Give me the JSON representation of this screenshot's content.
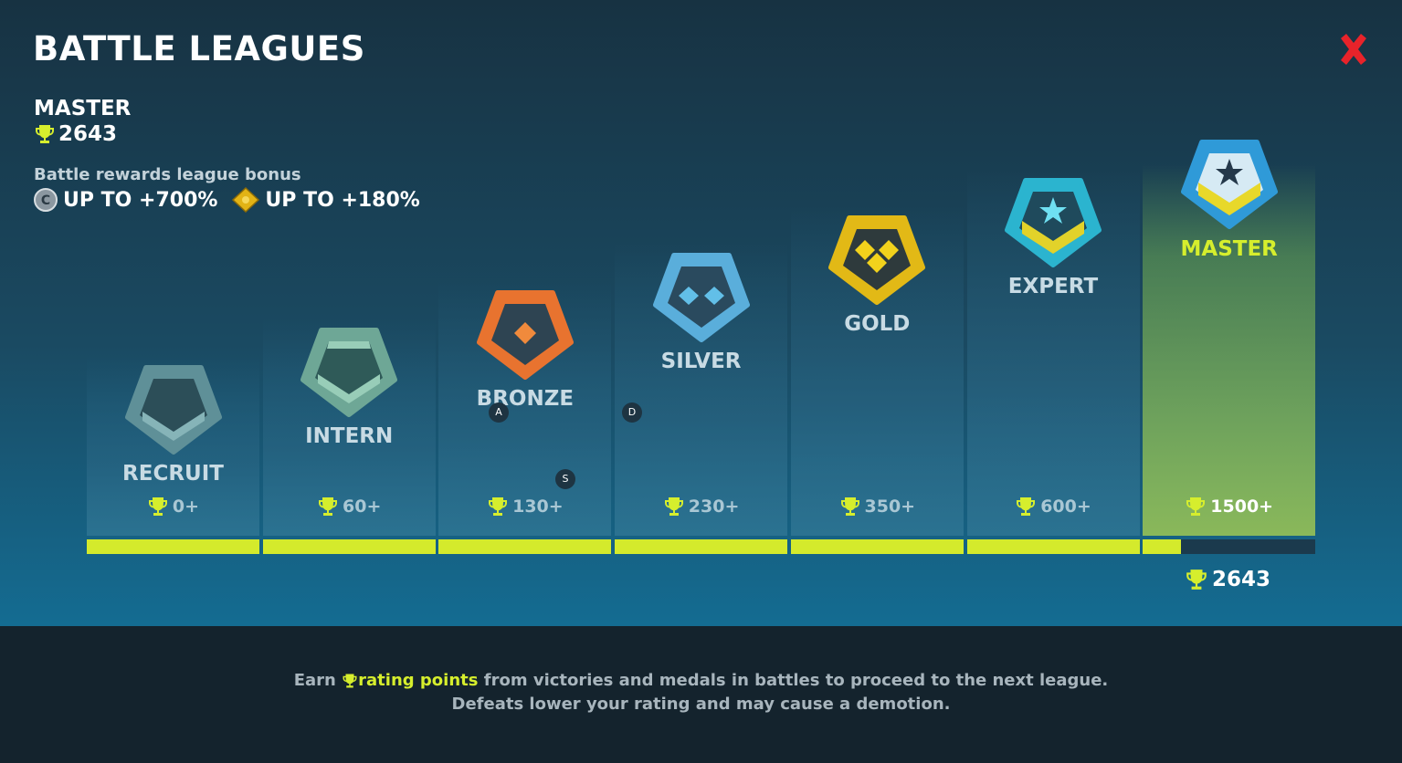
{
  "header": {
    "title": "BATTLE LEAGUES"
  },
  "player": {
    "league": "MASTER",
    "rating": "2643",
    "bonus_label": "Battle rewards league bonus",
    "bonuses": [
      "UP TO +700%",
      "UP TO +180%"
    ]
  },
  "leagues": [
    {
      "name": "RECRUIT",
      "threshold": "0+"
    },
    {
      "name": "INTERN",
      "threshold": "60+"
    },
    {
      "name": "BRONZE",
      "threshold": "130+"
    },
    {
      "name": "SILVER",
      "threshold": "230+"
    },
    {
      "name": "GOLD",
      "threshold": "350+"
    },
    {
      "name": "EXPERT",
      "threshold": "600+"
    },
    {
      "name": "MASTER",
      "threshold": "1500+"
    }
  ],
  "progress": {
    "rating": "2643"
  },
  "hotkeys": [
    "A",
    "D",
    "S"
  ],
  "footer": {
    "line1": [
      "Earn",
      "rating points",
      "from victories and medals in battles to proceed to the next league."
    ],
    "line2": "Defeats lower your rating and may cause a demotion."
  }
}
